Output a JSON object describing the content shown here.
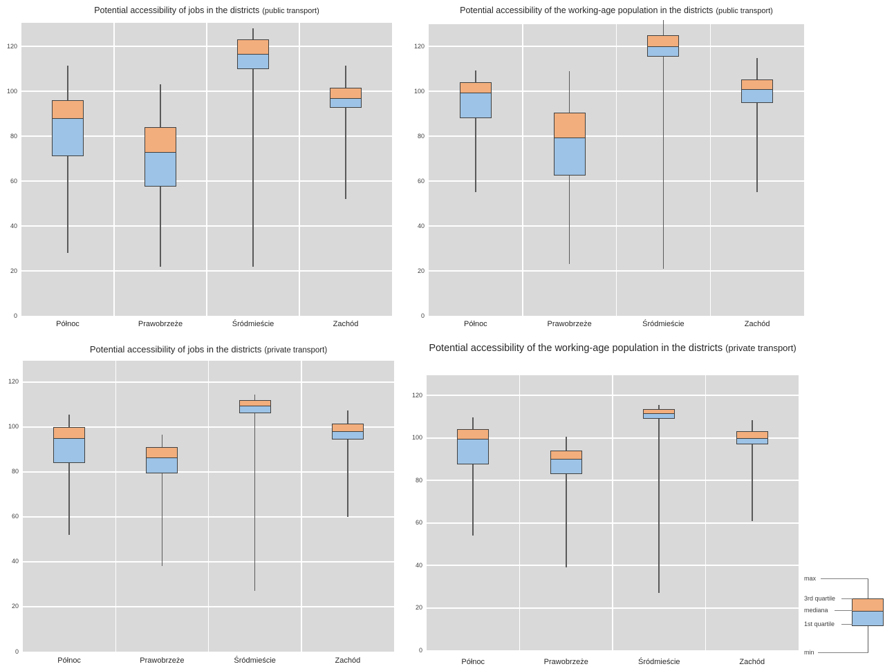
{
  "page": {
    "background": "#ffffff"
  },
  "colors": {
    "plot_background": "#d9d9d9",
    "gridline": "#ffffff",
    "box_upper_quartile_fill": "#f2ae7d",
    "box_lower_quartile_fill": "#9dc3e6",
    "box_border": "#3f3f3f",
    "whisker": "#595959",
    "title_text": "#262626",
    "tick_text": "#404040"
  },
  "legend": {
    "items": [
      "max",
      "3rd quartile",
      "mediana",
      "1st quartile",
      "min"
    ]
  },
  "chart_data": [
    {
      "type": "box",
      "title": "Potential accessibility of jobs in the districts",
      "title_suffix": "(public transport)",
      "categories": [
        "Północ",
        "Prawobrzeże",
        "Śródmieście",
        "Zachód"
      ],
      "yticks": [
        0,
        20,
        40,
        60,
        80,
        100,
        120
      ],
      "ylim": [
        0,
        130.5
      ],
      "grid": true,
      "series": [
        {
          "category": "Północ",
          "min": 28,
          "q1": 71,
          "median": 88,
          "q3": 96,
          "max": 111.5
        },
        {
          "category": "Prawobrzeże",
          "min": 22,
          "q1": 57.5,
          "median": 73,
          "q3": 84,
          "max": 103
        },
        {
          "category": "Śródmieście",
          "min": 22,
          "q1": 110,
          "median": 116.5,
          "q3": 123,
          "max": 128
        },
        {
          "category": "Zachód",
          "min": 52,
          "q1": 92.5,
          "median": 97,
          "q3": 101.5,
          "max": 111.5
        }
      ]
    },
    {
      "type": "box",
      "title": "Potential accessibility of the working-age population in the districts",
      "title_suffix": "(public transport)",
      "categories": [
        "Północ",
        "Prawobrzeże",
        "Śródmieście",
        "Zachód"
      ],
      "yticks": [
        0,
        20,
        40,
        60,
        80,
        100,
        120
      ],
      "ylim": [
        0,
        130
      ],
      "grid": true,
      "series": [
        {
          "category": "Północ",
          "min": 55,
          "q1": 88,
          "median": 99.5,
          "q3": 104,
          "max": 109.5
        },
        {
          "category": "Prawobrzeże",
          "min": 23,
          "q1": 62.5,
          "median": 79.5,
          "q3": 90.5,
          "max": 109
        },
        {
          "category": "Śródmieście",
          "min": 21,
          "q1": 115.5,
          "median": 120,
          "q3": 125,
          "max": 132
        },
        {
          "category": "Zachód",
          "min": 55,
          "q1": 95,
          "median": 101,
          "q3": 105.5,
          "max": 115
        }
      ]
    },
    {
      "type": "box",
      "title": "Potential accessibility of jobs in the districts",
      "title_suffix": "(private transport)",
      "categories": [
        "Północ",
        "Prawobrzeże",
        "Śródmieście",
        "Zachód"
      ],
      "yticks": [
        0,
        20,
        40,
        60,
        80,
        100,
        120
      ],
      "ylim": [
        0,
        129.5
      ],
      "grid": true,
      "series": [
        {
          "category": "Północ",
          "min": 52,
          "q1": 84,
          "median": 95,
          "q3": 100,
          "max": 105.5
        },
        {
          "category": "Prawobrzeże",
          "min": 38,
          "q1": 79.5,
          "median": 86.5,
          "q3": 91,
          "max": 96.5
        },
        {
          "category": "Śródmieście",
          "min": 27,
          "q1": 106,
          "median": 109.5,
          "q3": 112,
          "max": 114.5
        },
        {
          "category": "Zachód",
          "min": 60,
          "q1": 94.5,
          "median": 98,
          "q3": 101.5,
          "max": 107.5
        }
      ]
    },
    {
      "type": "box",
      "title": "Potential accessibility of the working-age population in the districts",
      "title_suffix": "(private transport)",
      "categories": [
        "Północ",
        "Prawobrzeże",
        "Śródmieście",
        "Zachód"
      ],
      "yticks": [
        0,
        20,
        40,
        60,
        80,
        100,
        120
      ],
      "ylim": [
        0,
        129.5
      ],
      "grid": true,
      "series": [
        {
          "category": "Północ",
          "min": 54,
          "q1": 87.5,
          "median": 99.5,
          "q3": 104,
          "max": 109.5
        },
        {
          "category": "Prawobrzeże",
          "min": 39,
          "q1": 83,
          "median": 90,
          "q3": 94,
          "max": 100.5
        },
        {
          "category": "Śródmieście",
          "min": 27,
          "q1": 109,
          "median": 111.5,
          "q3": 113.5,
          "max": 115.5
        },
        {
          "category": "Zachód",
          "min": 61,
          "q1": 97,
          "median": 100,
          "q3": 103,
          "max": 108.5
        }
      ]
    }
  ]
}
